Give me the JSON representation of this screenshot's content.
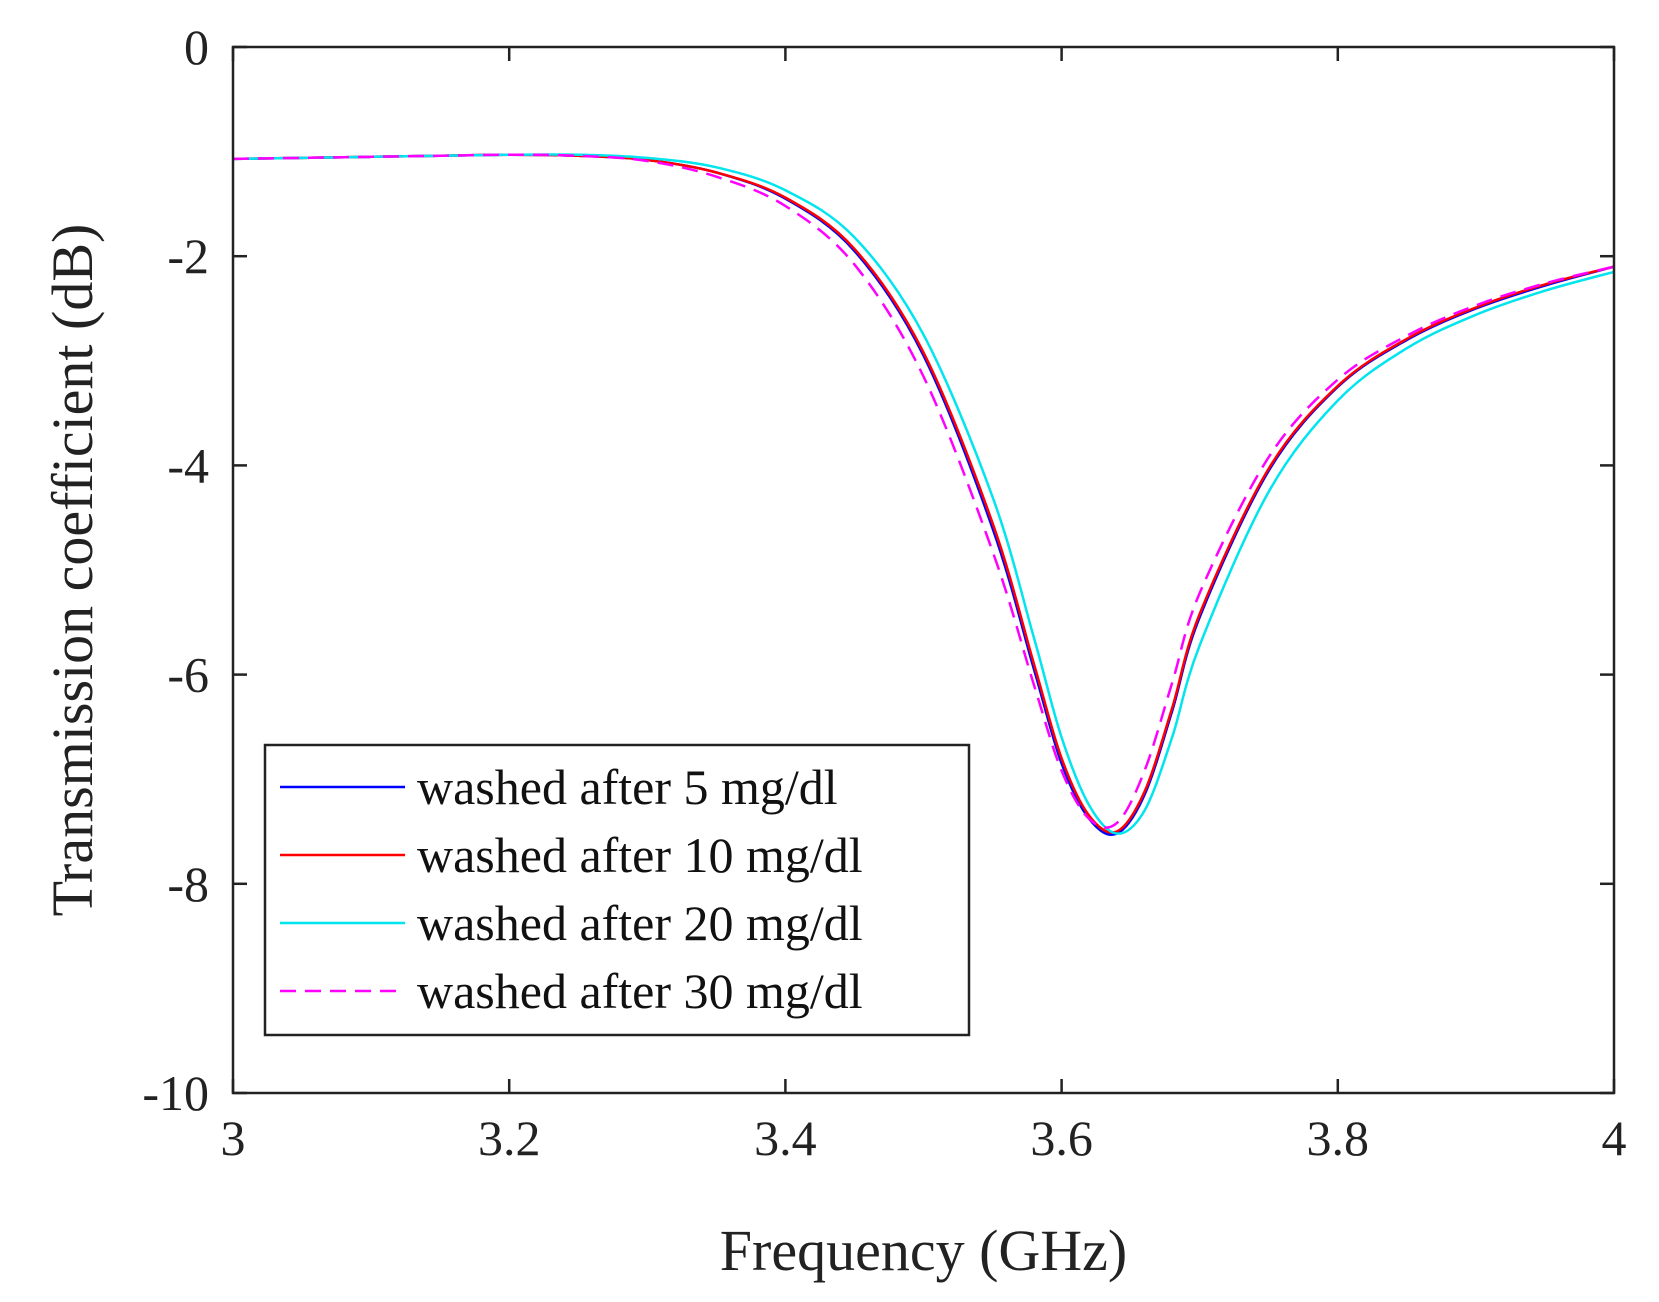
{
  "chart_data": {
    "type": "line",
    "title": "",
    "xlabel": "Frequency (GHz)",
    "ylabel": "Transmission coefficient (dB)",
    "xlim": [
      3,
      4
    ],
    "ylim": [
      -10,
      0
    ],
    "xticks": [
      3,
      3.2,
      3.4,
      3.6,
      3.8,
      4
    ],
    "xtick_labels": [
      "3",
      "3.2",
      "3.4",
      "3.6",
      "3.8",
      "4"
    ],
    "yticks": [
      0,
      -2,
      -4,
      -6,
      -8,
      -10
    ],
    "ytick_labels": [
      "0",
      "-2",
      "-4",
      "-6",
      "-8",
      "-10"
    ],
    "grid": false,
    "legend_position": "bottom-left",
    "x": [
      3.0,
      3.05,
      3.1,
      3.15,
      3.2,
      3.25,
      3.3,
      3.35,
      3.4,
      3.45,
      3.5,
      3.55,
      3.58,
      3.6,
      3.62,
      3.64,
      3.66,
      3.68,
      3.7,
      3.75,
      3.8,
      3.85,
      3.9,
      3.95,
      4.0
    ],
    "series": [
      {
        "name": "washed after 5 mg/dl",
        "color": "#0000ff",
        "dash": "solid",
        "values": [
          -1.07,
          -1.06,
          -1.05,
          -1.04,
          -1.03,
          -1.04,
          -1.08,
          -1.2,
          -1.45,
          -1.95,
          -2.95,
          -4.6,
          -5.95,
          -6.85,
          -7.38,
          -7.52,
          -7.15,
          -6.35,
          -5.45,
          -4.05,
          -3.25,
          -2.8,
          -2.5,
          -2.28,
          -2.1
        ]
      },
      {
        "name": "washed after 10 mg/dl",
        "color": "#ff0000",
        "dash": "solid",
        "values": [
          -1.07,
          -1.06,
          -1.05,
          -1.04,
          -1.03,
          -1.04,
          -1.08,
          -1.2,
          -1.44,
          -1.93,
          -2.92,
          -4.55,
          -5.9,
          -6.8,
          -7.35,
          -7.5,
          -7.12,
          -6.32,
          -5.42,
          -4.03,
          -3.24,
          -2.79,
          -2.49,
          -2.27,
          -2.1
        ]
      },
      {
        "name": "washed after 20 mg/dl",
        "color": "#00e5ee",
        "dash": "solid",
        "values": [
          -1.07,
          -1.06,
          -1.05,
          -1.04,
          -1.03,
          -1.03,
          -1.06,
          -1.15,
          -1.37,
          -1.82,
          -2.75,
          -4.3,
          -5.65,
          -6.6,
          -7.25,
          -7.52,
          -7.3,
          -6.6,
          -5.72,
          -4.25,
          -3.38,
          -2.88,
          -2.56,
          -2.33,
          -2.15
        ]
      },
      {
        "name": "washed after 30 mg/dl",
        "color": "#ff00ff",
        "dash": "dashed",
        "values": [
          -1.07,
          -1.06,
          -1.05,
          -1.04,
          -1.03,
          -1.04,
          -1.09,
          -1.24,
          -1.52,
          -2.08,
          -3.15,
          -4.82,
          -6.1,
          -6.92,
          -7.38,
          -7.42,
          -6.92,
          -6.08,
          -5.22,
          -3.92,
          -3.18,
          -2.76,
          -2.47,
          -2.26,
          -2.1
        ]
      }
    ]
  }
}
